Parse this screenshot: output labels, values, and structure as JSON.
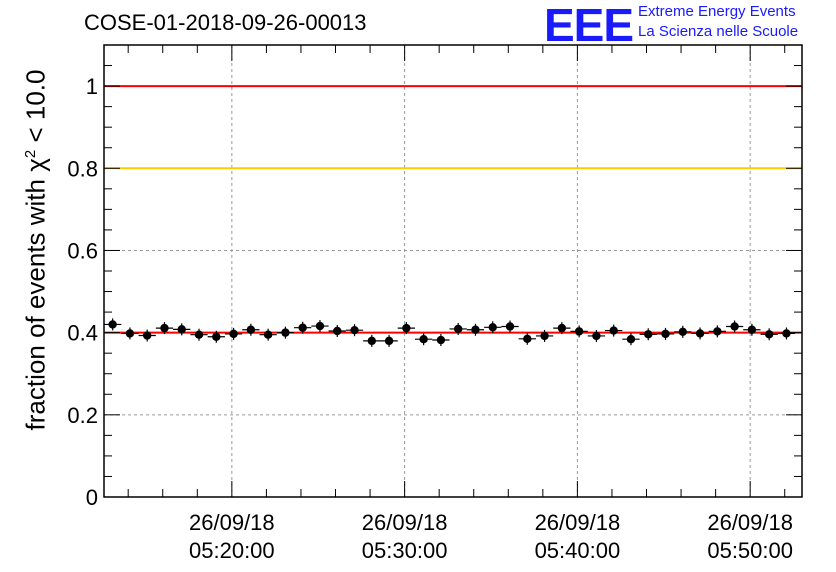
{
  "title": "COSE-01-2018-09-26-00013",
  "logo": {
    "mark": "EEE",
    "line1": "Extreme Energy Events",
    "line2": "La Scienza nelle Scuole",
    "color": "#1a1aff"
  },
  "chart_data": {
    "type": "scatter",
    "title": "COSE-01-2018-09-26-00013",
    "ylabel_parts": {
      "pre": "fraction of events with ",
      "symbol": "χ",
      "sup": "2",
      "post": " < 10.0"
    },
    "xlabel": "",
    "xlim_minutes": [
      12.6,
      53.0
    ],
    "ylim": [
      0,
      1.1
    ],
    "yticks": [
      0,
      0.2,
      0.4,
      0.6,
      0.8,
      1
    ],
    "ytick_labels": [
      "0",
      "0.2",
      "0.4",
      "0.6",
      "0.8",
      "1"
    ],
    "xticks_minutes": [
      20,
      30,
      40,
      50
    ],
    "xtick_labels": [
      [
        "26/09/18",
        "05:20:00"
      ],
      [
        "26/09/18",
        "05:30:00"
      ],
      [
        "26/09/18",
        "05:40:00"
      ],
      [
        "26/09/18",
        "05:50:00"
      ]
    ],
    "grid": true,
    "reference_lines": [
      {
        "y": 1.0,
        "color": "#ff0000"
      },
      {
        "y": 0.8,
        "color": "#ffcc00"
      },
      {
        "y": 0.4,
        "color": "#ff0000"
      }
    ],
    "series": [
      {
        "marker_color": "#000000",
        "bin_width_minutes": 1.0,
        "x_minutes": [
          13.1,
          14.1,
          15.1,
          16.1,
          17.1,
          18.1,
          19.1,
          20.1,
          21.1,
          22.1,
          23.1,
          24.1,
          25.1,
          26.1,
          27.1,
          28.1,
          29.1,
          30.1,
          31.1,
          32.1,
          33.1,
          34.1,
          35.1,
          36.1,
          37.1,
          38.1,
          39.1,
          40.1,
          41.1,
          42.1,
          43.1,
          44.1,
          45.1,
          46.1,
          47.1,
          48.1,
          49.1,
          50.1,
          51.1,
          52.1
        ],
        "y": [
          0.42,
          0.398,
          0.393,
          0.411,
          0.408,
          0.395,
          0.39,
          0.397,
          0.407,
          0.395,
          0.4,
          0.412,
          0.416,
          0.404,
          0.406,
          0.38,
          0.38,
          0.411,
          0.384,
          0.382,
          0.409,
          0.407,
          0.413,
          0.415,
          0.385,
          0.392,
          0.411,
          0.403,
          0.392,
          0.405,
          0.384,
          0.396,
          0.397,
          0.402,
          0.398,
          0.403,
          0.415,
          0.407,
          0.396,
          0.398
        ]
      }
    ]
  }
}
